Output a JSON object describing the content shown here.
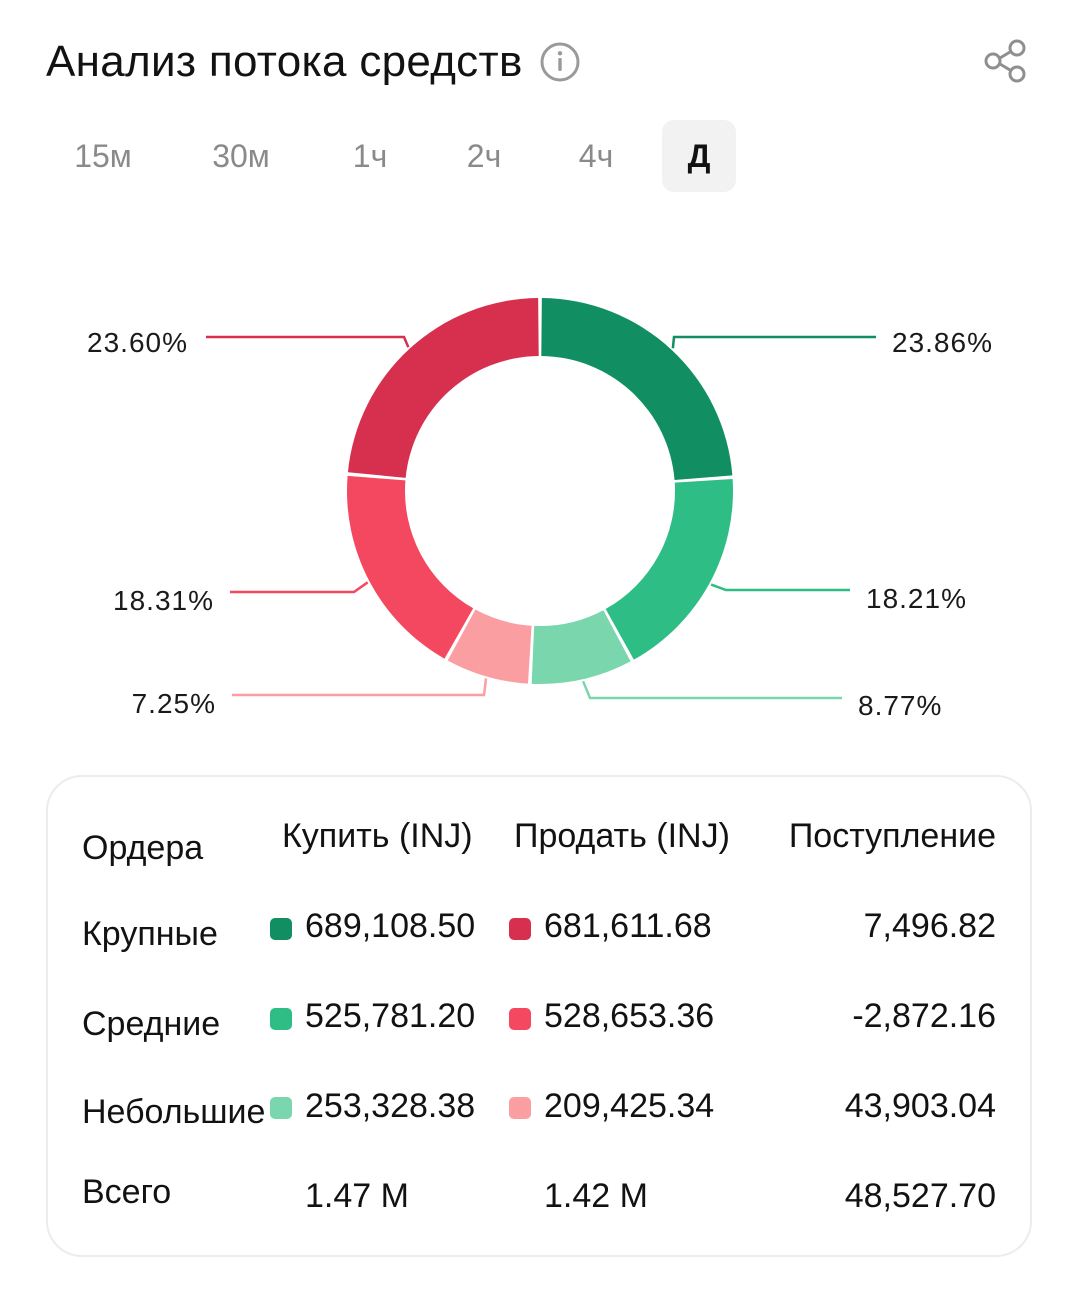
{
  "header": {
    "title": "Анализ потока средств",
    "info_icon": "info-circle-icon",
    "share_icon": "share-icon"
  },
  "tabs": [
    {
      "label": "15м",
      "active": false
    },
    {
      "label": "30м",
      "active": false
    },
    {
      "label": "1ч",
      "active": false
    },
    {
      "label": "2ч",
      "active": false
    },
    {
      "label": "4ч",
      "active": false
    },
    {
      "label": "Д",
      "active": true
    }
  ],
  "colors": {
    "buy_large": "#118f63",
    "buy_medium": "#2fbd86",
    "buy_small": "#7ad7ad",
    "sell_large": "#d7304e",
    "sell_medium": "#f3485f",
    "sell_small": "#fb9ea2"
  },
  "chart_data": {
    "type": "pie",
    "donut": true,
    "slices": [
      {
        "label": "23.86%",
        "value": 23.86,
        "color": "#118f63"
      },
      {
        "label": "18.21%",
        "value": 18.21,
        "color": "#2fbd86"
      },
      {
        "label": "8.77%",
        "value": 8.77,
        "color": "#7ad7ad"
      },
      {
        "label": "7.25%",
        "value": 7.25,
        "color": "#fb9ea2"
      },
      {
        "label": "18.31%",
        "value": 18.31,
        "color": "#f3485f"
      },
      {
        "label": "23.60%",
        "value": 23.6,
        "color": "#d7304e"
      }
    ]
  },
  "table": {
    "columns": [
      "Ордера",
      "Купить (INJ)",
      "Продать (INJ)",
      "Поступление"
    ],
    "rows": [
      {
        "label": "Крупные",
        "buy": "689,108.50",
        "sell": "681,611.68",
        "inflow": "7,496.82",
        "buy_color": "#118f63",
        "sell_color": "#d7304e"
      },
      {
        "label": "Средние",
        "buy": "525,781.20",
        "sell": "528,653.36",
        "inflow": "-2,872.16",
        "buy_color": "#2fbd86",
        "sell_color": "#f3485f"
      },
      {
        "label": "Небольшие",
        "buy": "253,328.38",
        "sell": "209,425.34",
        "inflow": "43,903.04",
        "buy_color": "#7ad7ad",
        "sell_color": "#fb9ea2"
      }
    ],
    "total": {
      "label": "Всего",
      "buy": "1.47 M",
      "sell": "1.42 M",
      "inflow": "48,527.70"
    }
  }
}
